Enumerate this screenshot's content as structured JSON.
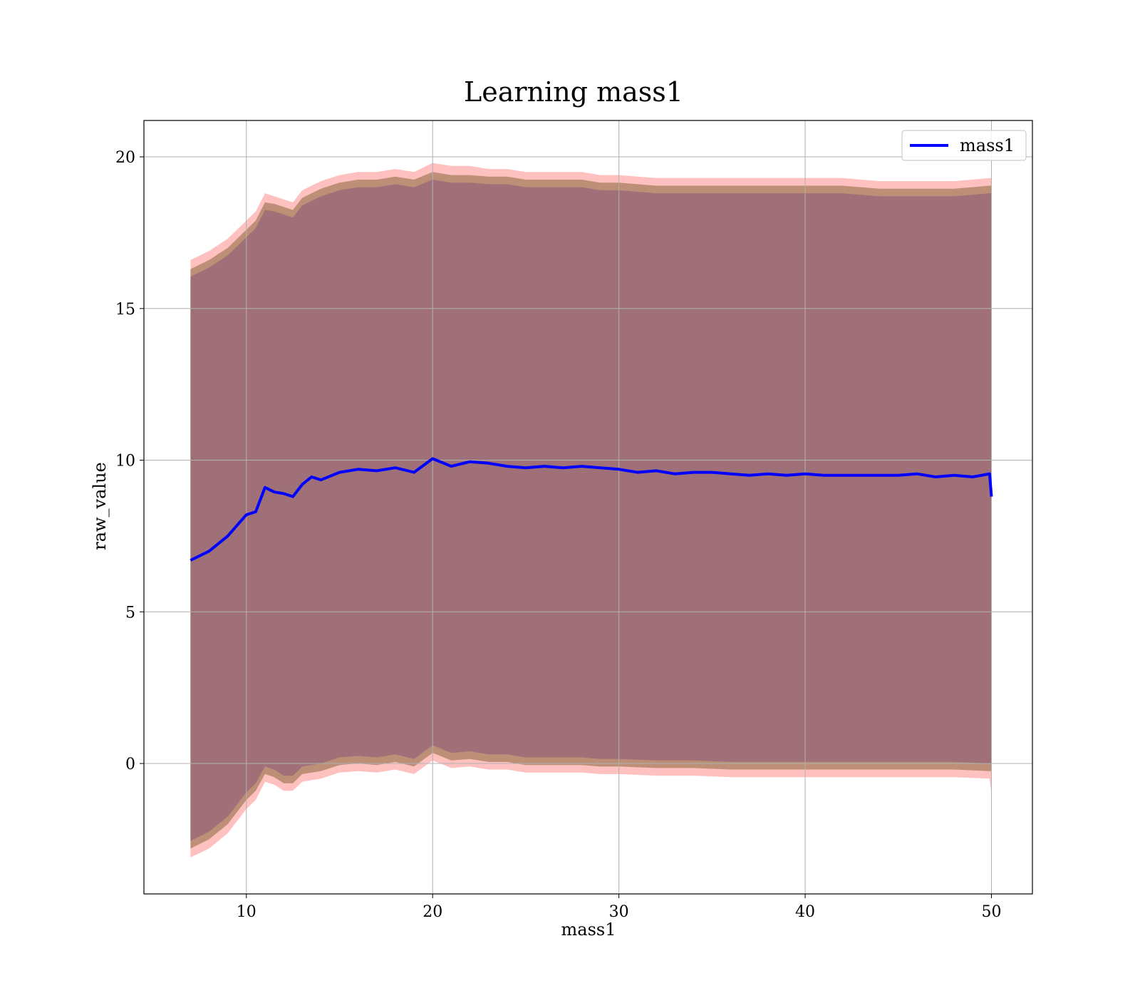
{
  "chart_data": {
    "type": "line",
    "title": "Learning mass1",
    "xlabel": "mass1",
    "ylabel": "raw_value",
    "xlim": [
      4.5,
      52.2
    ],
    "ylim": [
      -4.3,
      21.2
    ],
    "x_ticks": [
      10,
      20,
      30,
      40,
      50
    ],
    "y_ticks": [
      0,
      5,
      10,
      15,
      20
    ],
    "grid": true,
    "legend_position": "top-right",
    "series": [
      {
        "name": "mass1",
        "color": "#0000ff",
        "x": [
          7.0,
          8.0,
          9.0,
          10.0,
          10.5,
          11.0,
          11.5,
          12.0,
          12.5,
          13.0,
          13.5,
          14.0,
          15.0,
          16.0,
          17.0,
          18.0,
          19.0,
          20.0,
          21.0,
          22.0,
          23.0,
          24.0,
          25.0,
          26.0,
          27.0,
          28.0,
          29.0,
          30.0,
          31.0,
          32.0,
          33.0,
          34.0,
          35.0,
          36.0,
          37.0,
          38.0,
          39.0,
          40.0,
          41.0,
          42.0,
          43.0,
          44.0,
          45.0,
          46.0,
          47.0,
          48.0,
          49.0,
          49.9,
          50.0
        ],
        "y": [
          6.7,
          7.0,
          7.5,
          8.2,
          8.3,
          9.1,
          8.95,
          8.9,
          8.8,
          9.2,
          9.45,
          9.35,
          9.6,
          9.7,
          9.65,
          9.75,
          9.6,
          10.05,
          9.8,
          9.95,
          9.9,
          9.8,
          9.75,
          9.8,
          9.75,
          9.8,
          9.75,
          9.7,
          9.6,
          9.65,
          9.55,
          9.6,
          9.6,
          9.55,
          9.5,
          9.55,
          9.5,
          9.55,
          9.5,
          9.5,
          9.5,
          9.5,
          9.5,
          9.55,
          9.45,
          9.5,
          9.45,
          9.55,
          8.8
        ]
      }
    ],
    "bands": [
      {
        "color": "#ff8c8c",
        "opacity": 0.55,
        "x": [
          7.0,
          8.0,
          9.0,
          10.0,
          10.5,
          11.0,
          11.5,
          12.0,
          12.5,
          13.0,
          14.0,
          15.0,
          16.0,
          17.0,
          18.0,
          19.0,
          20.0,
          21.0,
          22.0,
          23.0,
          24.0,
          25.0,
          26.0,
          27.0,
          28.0,
          29.0,
          30.0,
          32.0,
          34.0,
          36.0,
          38.0,
          40.0,
          42.0,
          44.0,
          46.0,
          48.0,
          49.9,
          50.0
        ],
        "upper": [
          16.6,
          16.9,
          17.3,
          17.9,
          18.2,
          18.8,
          18.7,
          18.6,
          18.5,
          18.9,
          19.2,
          19.4,
          19.5,
          19.5,
          19.6,
          19.5,
          19.8,
          19.7,
          19.7,
          19.6,
          19.6,
          19.5,
          19.5,
          19.5,
          19.5,
          19.4,
          19.4,
          19.3,
          19.3,
          19.3,
          19.3,
          19.3,
          19.3,
          19.2,
          19.2,
          19.2,
          19.3,
          19.3
        ],
        "lower": [
          -3.1,
          -2.8,
          -2.3,
          -1.5,
          -1.2,
          -0.6,
          -0.7,
          -0.9,
          -0.9,
          -0.6,
          -0.5,
          -0.3,
          -0.25,
          -0.3,
          -0.2,
          -0.35,
          0.1,
          -0.15,
          -0.1,
          -0.2,
          -0.2,
          -0.3,
          -0.3,
          -0.3,
          -0.3,
          -0.35,
          -0.35,
          -0.4,
          -0.4,
          -0.45,
          -0.45,
          -0.45,
          -0.45,
          -0.45,
          -0.45,
          -0.45,
          -0.5,
          -1.0
        ]
      },
      {
        "color": "#b2866a",
        "opacity": 0.85,
        "x": [
          7.0,
          8.0,
          9.0,
          10.0,
          10.5,
          11.0,
          11.5,
          12.0,
          12.5,
          13.0,
          14.0,
          15.0,
          16.0,
          17.0,
          18.0,
          19.0,
          20.0,
          21.0,
          22.0,
          23.0,
          24.0,
          25.0,
          26.0,
          27.0,
          28.0,
          29.0,
          30.0,
          32.0,
          34.0,
          36.0,
          38.0,
          40.0,
          42.0,
          44.0,
          46.0,
          48.0,
          49.9,
          50.0
        ],
        "upper": [
          16.3,
          16.6,
          17.0,
          17.6,
          17.9,
          18.5,
          18.45,
          18.35,
          18.25,
          18.65,
          18.95,
          19.15,
          19.25,
          19.25,
          19.35,
          19.25,
          19.5,
          19.4,
          19.4,
          19.35,
          19.35,
          19.25,
          19.25,
          19.25,
          19.25,
          19.15,
          19.15,
          19.05,
          19.05,
          19.05,
          19.05,
          19.05,
          19.05,
          18.95,
          18.95,
          18.95,
          19.05,
          19.05
        ],
        "lower": [
          -2.8,
          -2.5,
          -2.0,
          -1.2,
          -0.9,
          -0.35,
          -0.45,
          -0.65,
          -0.65,
          -0.35,
          -0.25,
          -0.05,
          0.0,
          -0.05,
          0.05,
          -0.1,
          0.35,
          0.1,
          0.15,
          0.05,
          0.05,
          -0.05,
          -0.05,
          -0.05,
          -0.05,
          -0.1,
          -0.1,
          -0.15,
          -0.15,
          -0.2,
          -0.2,
          -0.2,
          -0.2,
          -0.2,
          -0.2,
          -0.2,
          -0.25,
          -0.25
        ]
      },
      {
        "color": "#a07078",
        "opacity": 1.0,
        "x": [
          7.0,
          8.0,
          9.0,
          10.0,
          10.5,
          11.0,
          11.5,
          12.0,
          12.5,
          13.0,
          14.0,
          15.0,
          16.0,
          17.0,
          18.0,
          19.0,
          20.0,
          21.0,
          22.0,
          23.0,
          24.0,
          25.0,
          26.0,
          27.0,
          28.0,
          29.0,
          30.0,
          32.0,
          34.0,
          36.0,
          38.0,
          40.0,
          42.0,
          44.0,
          46.0,
          48.0,
          49.9,
          50.0
        ],
        "upper": [
          16.05,
          16.35,
          16.75,
          17.35,
          17.65,
          18.25,
          18.2,
          18.1,
          18.0,
          18.4,
          18.7,
          18.9,
          19.0,
          19.0,
          19.1,
          19.0,
          19.25,
          19.15,
          19.15,
          19.1,
          19.1,
          19.0,
          19.0,
          19.0,
          19.0,
          18.9,
          18.9,
          18.8,
          18.8,
          18.8,
          18.8,
          18.8,
          18.8,
          18.7,
          18.7,
          18.7,
          18.8,
          18.8
        ],
        "lower": [
          -2.55,
          -2.25,
          -1.75,
          -0.95,
          -0.65,
          -0.1,
          -0.2,
          -0.4,
          -0.4,
          -0.1,
          0.0,
          0.2,
          0.25,
          0.2,
          0.3,
          0.15,
          0.6,
          0.35,
          0.4,
          0.3,
          0.3,
          0.2,
          0.2,
          0.2,
          0.2,
          0.15,
          0.15,
          0.1,
          0.1,
          0.05,
          0.05,
          0.05,
          0.05,
          0.05,
          0.05,
          0.05,
          0.0,
          0.0
        ]
      }
    ]
  }
}
